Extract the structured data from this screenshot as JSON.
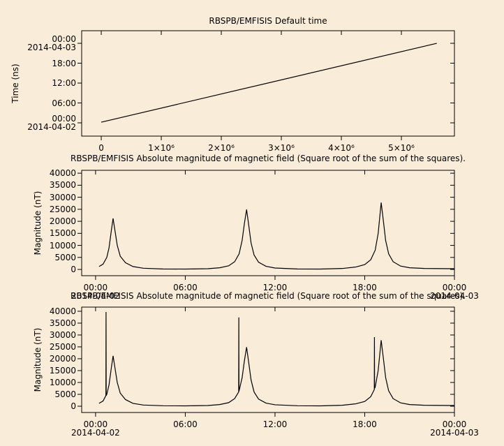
{
  "chart_data": [
    {
      "type": "line",
      "title": "RBSPB/EMFISIS  Default time",
      "y_label": "Time (ns)",
      "x": [
        0,
        5590000
      ],
      "values": [
        0.2,
        24
      ],
      "color": "#000000",
      "xlim": [
        -326000,
        5884000
      ],
      "ylim": [
        -4,
        27.8
      ],
      "xticks": [
        0,
        {
          "value": 1000000,
          "label": "1×10⁶"
        },
        {
          "value": 2000000,
          "label": "2×10⁶"
        },
        {
          "value": 3000000,
          "label": "3×10⁶"
        },
        {
          "value": 4000000,
          "label": "4×10⁶"
        },
        {
          "value": 5000000,
          "label": "5×10⁶"
        }
      ],
      "yticks": [
        {
          "value": 0,
          "label": "00:00\n2014-04-02"
        },
        {
          "value": 6,
          "label": "06:00"
        },
        {
          "value": 12,
          "label": "12:00"
        },
        {
          "value": 18,
          "label": "18:00"
        },
        {
          "value": 24,
          "label": "00:00\n2014-04-03"
        }
      ]
    },
    {
      "type": "line",
      "title": "RBSPB/EMFISIS  Absolute magnitude of magnetic field (Square root of the sum of the squares).",
      "y_label": "Magnitude (nT)",
      "x": [
        0.23,
        0.5,
        0.75,
        0.9,
        1.05,
        1.17,
        1.3,
        1.45,
        1.65,
        2.0,
        2.5,
        3.2,
        4.5,
        6,
        7.5,
        8.3,
        8.9,
        9.3,
        9.6,
        9.8,
        9.95,
        10.1,
        10.25,
        10.4,
        10.6,
        10.9,
        11.4,
        12,
        13.5,
        15,
        16.5,
        17.4,
        18.0,
        18.4,
        18.7,
        18.9,
        19.1,
        19.25,
        19.4,
        19.6,
        19.9,
        20.4,
        21,
        22,
        24
      ],
      "values": [
        1200,
        2200,
        5000,
        9000,
        16000,
        21200,
        16000,
        10000,
        5500,
        2800,
        1200,
        500,
        200,
        150,
        300,
        700,
        1500,
        3200,
        6500,
        12000,
        19000,
        24900,
        18000,
        11000,
        6000,
        3000,
        1300,
        600,
        200,
        150,
        400,
        1000,
        2000,
        4000,
        8000,
        15000,
        27800,
        20000,
        12000,
        6500,
        3200,
        1400,
        700,
        400,
        300
      ],
      "color": "#000000",
      "xlim": [
        -0.93,
        24
      ],
      "ylim": [
        -2600,
        41200
      ],
      "xticks": [
        {
          "value": 0,
          "label": "00:00\n2014-04-02"
        },
        {
          "value": 6,
          "label": "06:00"
        },
        {
          "value": 12,
          "label": "12:00"
        },
        {
          "value": 18,
          "label": "18:00"
        },
        {
          "value": 24,
          "label": "00:00\n2014-04-03"
        }
      ],
      "yticks": [
        0,
        5000,
        10000,
        15000,
        20000,
        25000,
        30000,
        35000,
        40000
      ]
    },
    {
      "type": "line",
      "title": "RBSPB/EMFISIS  Absolute magnitude of magnetic field (Square root of the sum of the squares).",
      "y_label": "Magnitude (nT)",
      "x": [
        0.23,
        0.5,
        0.69,
        0.7,
        0.71,
        0.75,
        0.9,
        1.05,
        1.17,
        1.3,
        1.45,
        1.65,
        2.0,
        2.5,
        3.2,
        4.5,
        6,
        7.5,
        8.3,
        8.9,
        9.3,
        9.57,
        9.58,
        9.59,
        9.6,
        9.8,
        9.95,
        10.1,
        10.25,
        10.4,
        10.6,
        10.9,
        11.4,
        12,
        13.5,
        15,
        16.5,
        17.4,
        18.0,
        18.4,
        18.64,
        18.65,
        18.66,
        18.7,
        18.9,
        19.1,
        19.25,
        19.4,
        19.6,
        19.9,
        20.4,
        21,
        22,
        24
      ],
      "values": [
        1200,
        2200,
        4500,
        39700,
        4500,
        5000,
        9000,
        16000,
        21200,
        16000,
        10000,
        5500,
        2800,
        1200,
        500,
        200,
        150,
        300,
        700,
        1500,
        3200,
        6000,
        37400,
        6300,
        6500,
        12000,
        19000,
        24900,
        18000,
        11000,
        6000,
        3000,
        1300,
        600,
        200,
        150,
        400,
        1000,
        2000,
        4000,
        7000,
        29100,
        7500,
        8000,
        15000,
        27800,
        20000,
        12000,
        6500,
        3200,
        1400,
        700,
        400,
        300
      ],
      "color": "#000000",
      "xlim": [
        -0.93,
        24
      ],
      "ylim": [
        -2650,
        41750
      ],
      "xticks": [
        {
          "value": 0,
          "label": "00:00\n2014-04-02"
        },
        {
          "value": 6,
          "label": "06:00"
        },
        {
          "value": 12,
          "label": "12:00"
        },
        {
          "value": 18,
          "label": "18:00"
        },
        {
          "value": 24,
          "label": "00:00\n2014-04-03"
        }
      ],
      "yticks": [
        0,
        5000,
        10000,
        15000,
        20000,
        25000,
        30000,
        35000,
        40000
      ]
    }
  ]
}
